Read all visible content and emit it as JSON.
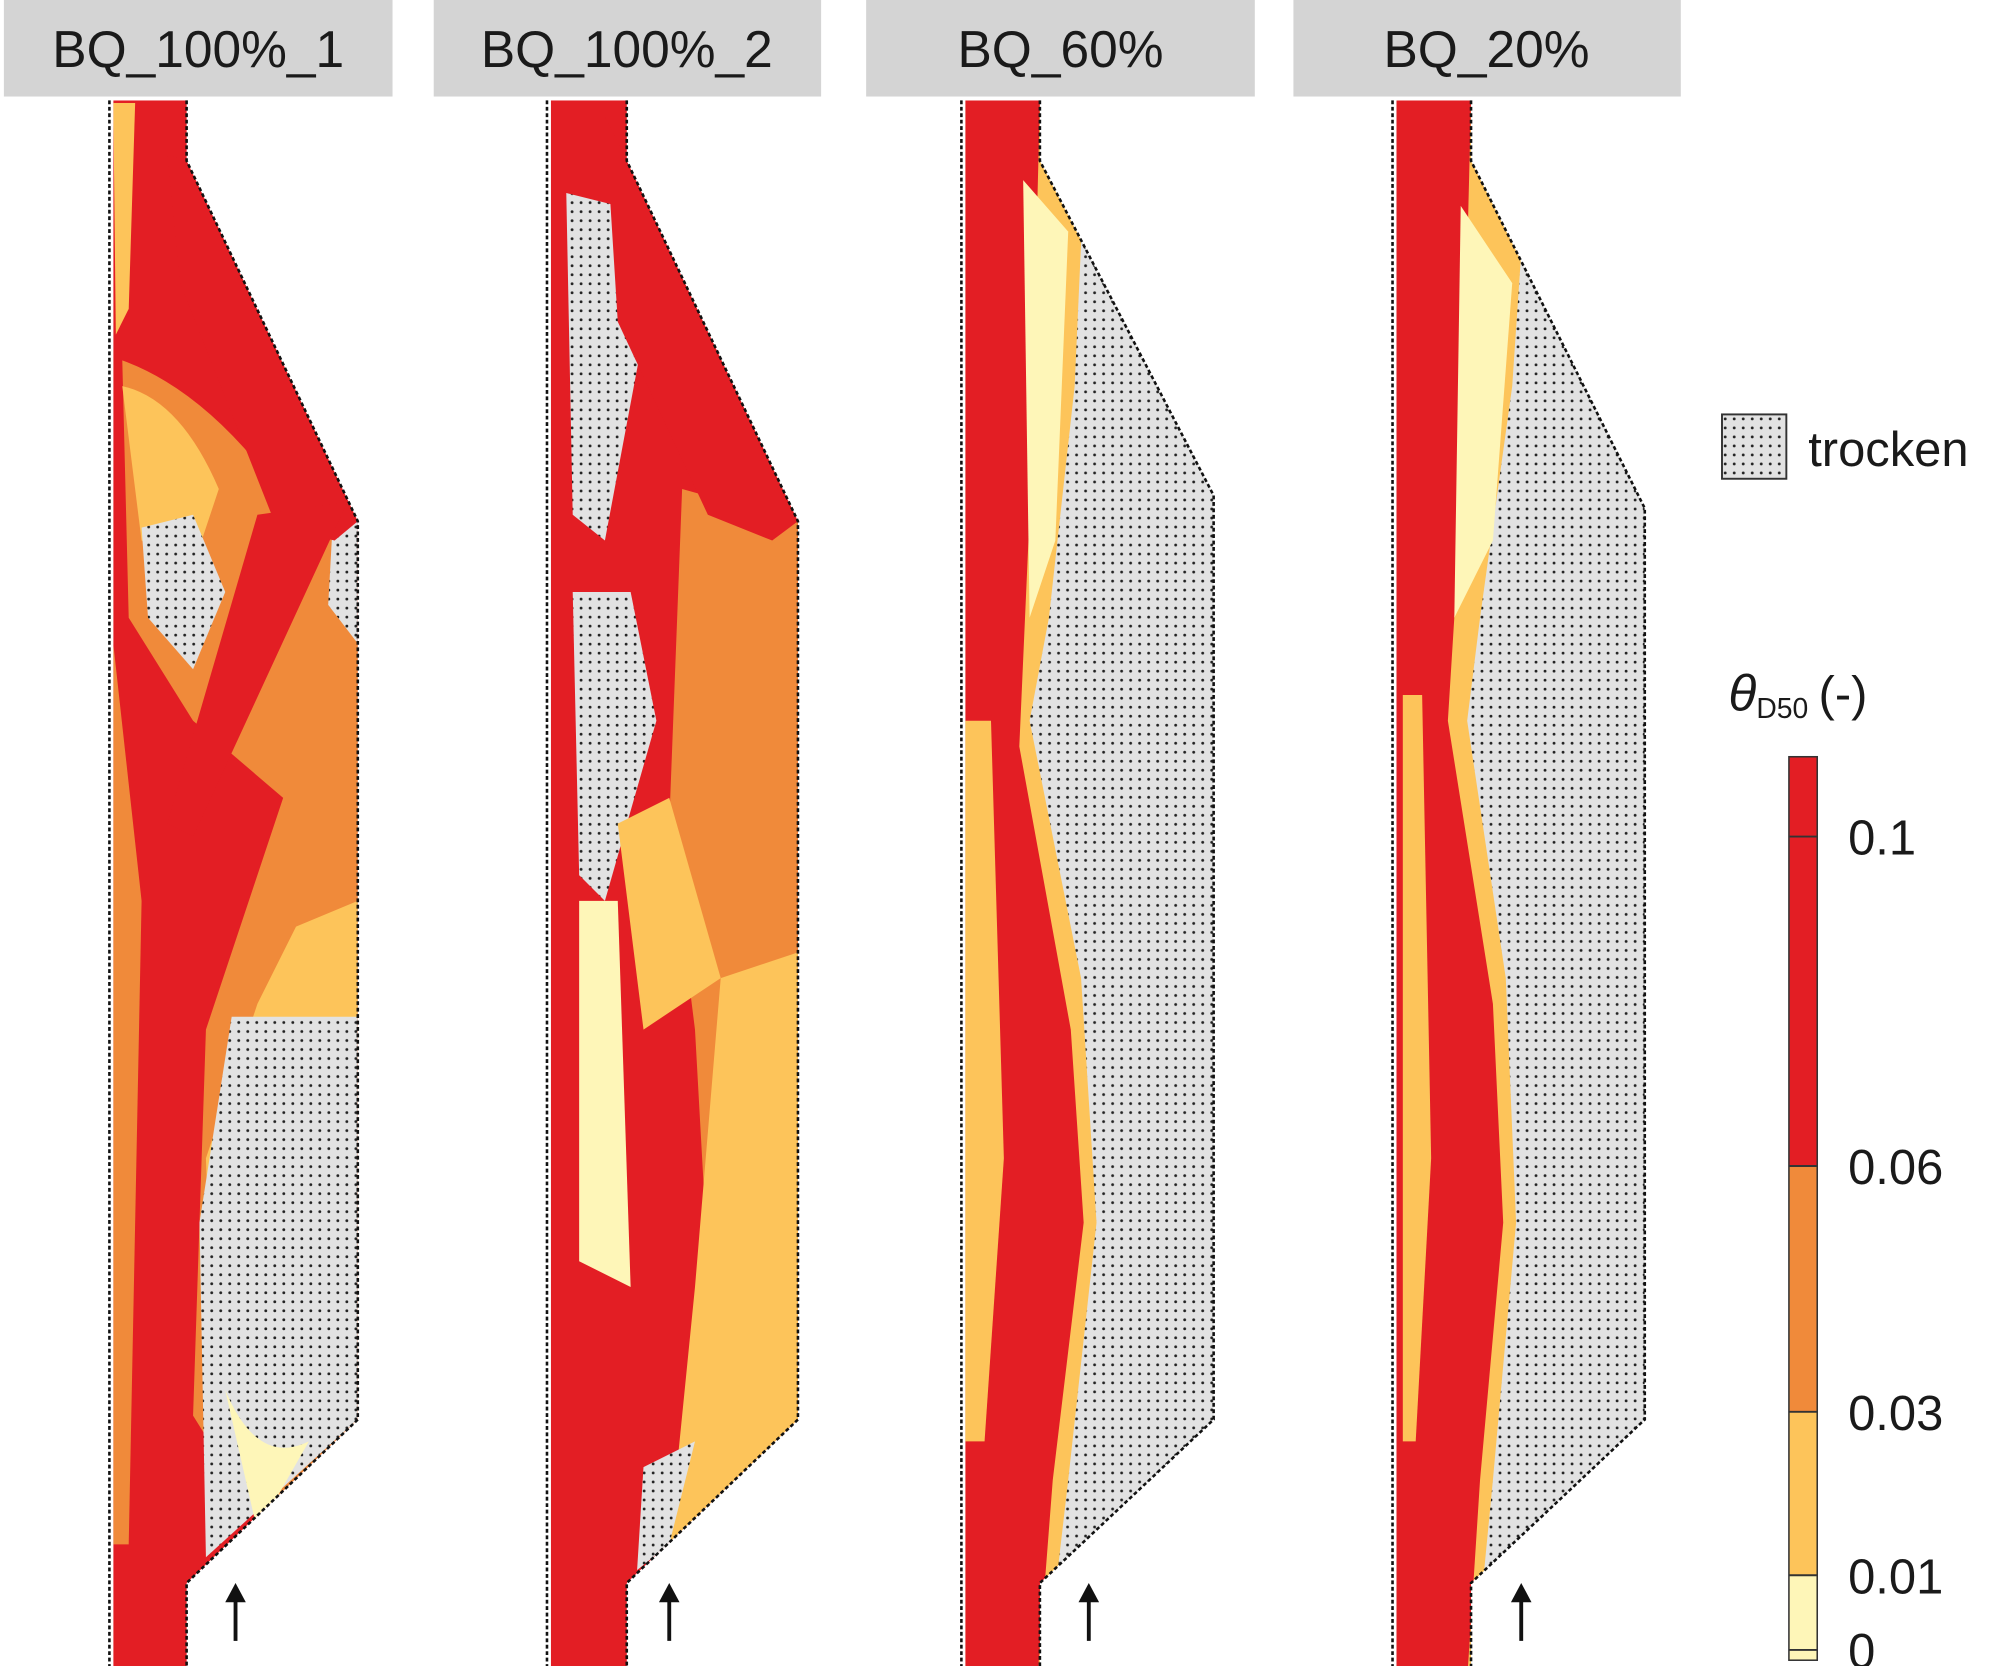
{
  "panels": [
    {
      "title": "BQ_100%_1"
    },
    {
      "title": "BQ_100%_2"
    },
    {
      "title": "BQ_60%"
    },
    {
      "title": "BQ_20%"
    }
  ],
  "legend": {
    "dry_label": "trocken"
  },
  "colorbar": {
    "symbol": "θ",
    "subscript": "D50",
    "unit": "(-)",
    "ticks": [
      0,
      0.01,
      0.03,
      0.06,
      0.1
    ],
    "colors": [
      "#fef6b8",
      "#fdc45a",
      "#f08a3a",
      "#e31e24"
    ]
  }
}
